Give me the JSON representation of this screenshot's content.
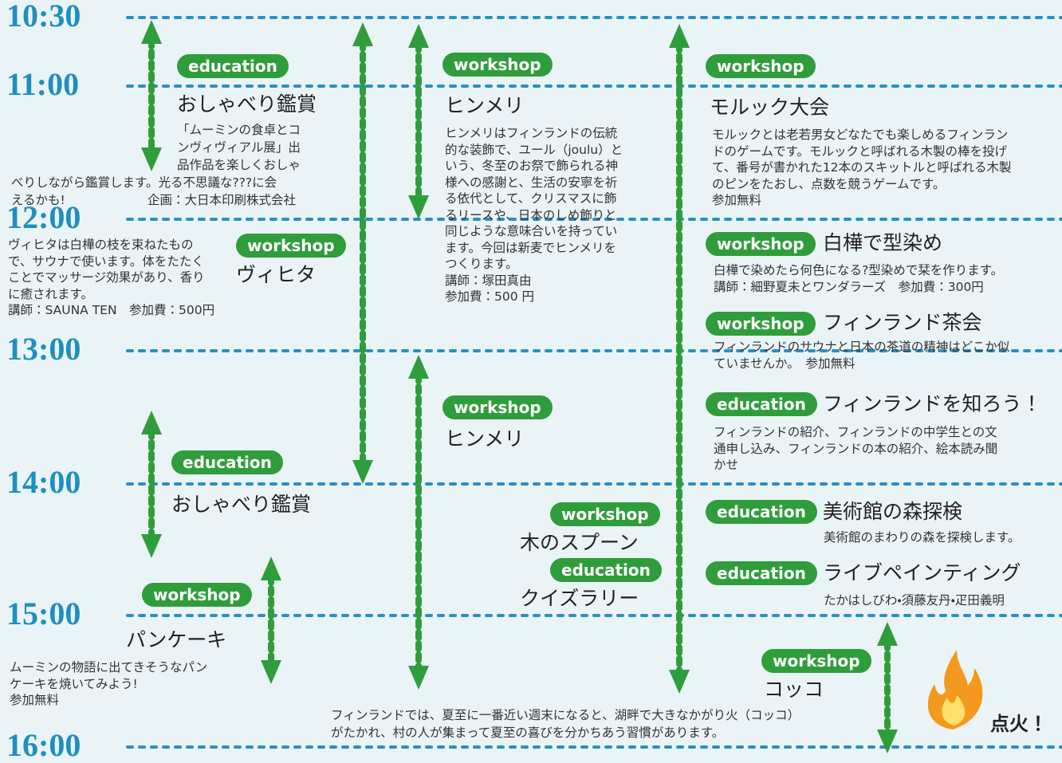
{
  "times": [
    "10:30",
    "11:00",
    "12:00",
    "13:00",
    "14:00",
    "15:00",
    "16:00"
  ],
  "events": [
    {
      "tag": "education",
      "title": "おしゃべり鑑賞",
      "description": [
        "「ムーミンの食卓とコ",
        "ンヴィヴィアル展」出",
        "品作品を楽しくおしゃ",
        "べりしながら鑑賞します。光る不思議な???に会",
        "えるかも!",
        "企画：大日本印刷株式会社"
      ]
    },
    {
      "tag": "workshop",
      "title": "ヒンメリ",
      "description": [
        "ヒンメリはフィンランドの伝統",
        "的な装飾で、ユール（joulu）と",
        "いう、冬至のお祭で飾られる神",
        "様への感謝と、生活の安寧を祈",
        "る依代として、クリスマスに飾",
        "るリースや、日本のしめ飾りと",
        "同じような意味合いを持ってい",
        "ます。今回は新麦でヒンメリを",
        "つくります。",
        "講師：塚田真由",
        "参加費：500 円"
      ]
    },
    {
      "tag": "workshop",
      "title": "モルック大会",
      "description": [
        "モルックとは老若男女どなたでも楽しめるフィンラン",
        "ドのゲームです。モルックと呼ばれる木製の棒を投げ",
        "て、番号が書かれた12本のスキットルと呼ばれる木製",
        "のピンをたおし、点数を競うゲームです。",
        "参加無料"
      ]
    },
    {
      "tag": "workshop",
      "title": "ヴィヒタ",
      "description": [
        "ヴィヒタは白樺の枝を束ねたもの",
        "で、サウナで使います。体をたたく",
        "ことでマッサージ効果があり、香り",
        "に癒されます。",
        "講師：SAUNA TEN　参加費：500円"
      ]
    },
    {
      "tag": "workshop",
      "title": "白樺で型染め",
      "description": [
        "白樺で染めたら何色になる?型染めで栞を作ります。",
        "講師：細野夏未とワンダラーズ　参加費：300円"
      ]
    },
    {
      "tag": "workshop",
      "title": "フィンランド茶会",
      "description": [
        "フィンランドのサウナと日本の茶道の精神はどこか似",
        "ていませんか。　参加無料"
      ]
    },
    {
      "tag": "workshop",
      "title": "ヒンメリ",
      "description": []
    },
    {
      "tag": "education",
      "title": "フィンランドを知ろう！",
      "description": [
        "フィンランドの紹介、フィンランドの中学生との文",
        "通申し込み、フィンランドの本の紹介、絵本読み聞",
        "かせ"
      ]
    },
    {
      "tag": "education",
      "title": "おしゃべり鑑賞",
      "description": []
    },
    {
      "tag": "education",
      "title": "美術館の森探検",
      "description": [
        "美術館のまわりの森を探検します。"
      ]
    },
    {
      "tag": "workshop",
      "title": "木のスプーン",
      "description": []
    },
    {
      "tag": "education",
      "title": "ライブペインティング",
      "description": [
        "たかはしびわ・須藤友丹・疋田義明"
      ]
    },
    {
      "tag": "education",
      "title": "クイズラリー",
      "description": []
    },
    {
      "tag": "workshop",
      "title": "パンケーキ",
      "description": [
        "ムーミンの物語に出てきそうなパン",
        "ケーキを焼いてみよう!",
        "参加無料"
      ]
    },
    {
      "tag": "workshop",
      "title": "コッコ",
      "description": []
    }
  ],
  "footer": [
    "フィンランドでは、夏至に一番近い週末になると、湖畔で大きなかがり火（コッコ）",
    "がたかれ、村の人が集まって夏至の喜びを分かちあう習慣があります。"
  ],
  "fire_label": "点火！"
}
